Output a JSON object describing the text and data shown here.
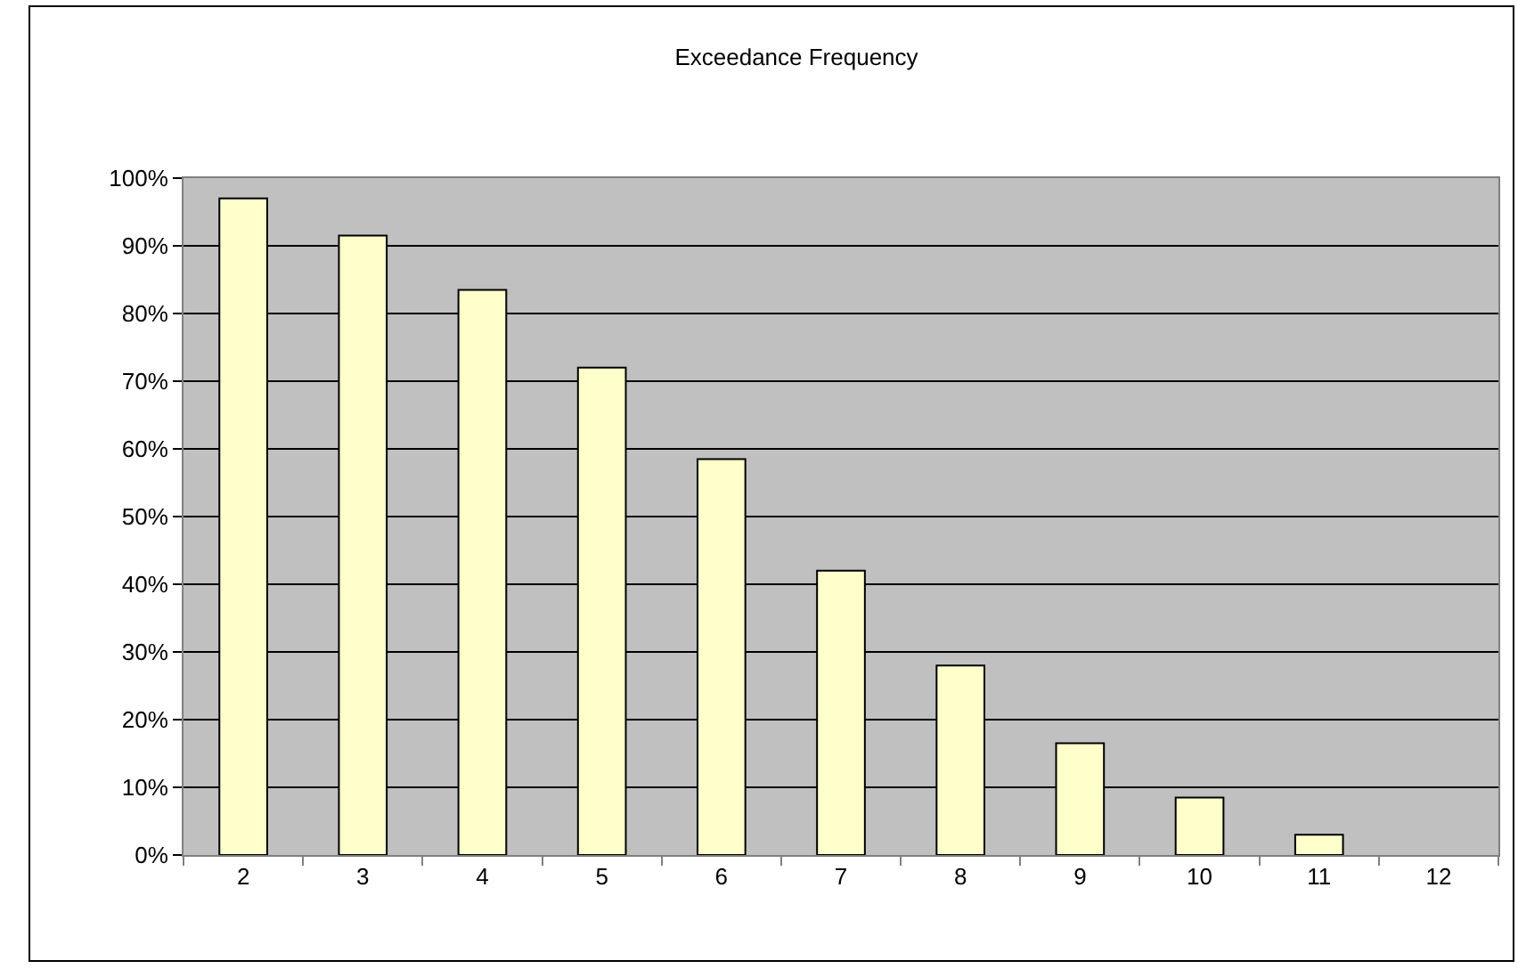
{
  "chart_data": {
    "type": "bar",
    "title": "Exceedance Frequency",
    "categories": [
      "2",
      "3",
      "4",
      "5",
      "6",
      "7",
      "8",
      "9",
      "10",
      "11",
      "12"
    ],
    "values": [
      97,
      91.5,
      83.5,
      72,
      58.5,
      42,
      28,
      16.5,
      8.5,
      3,
      0
    ],
    "color": "#ffffcc",
    "ylim": [
      0,
      100
    ],
    "yticks": [
      {
        "value": 0,
        "label": "0%"
      },
      {
        "value": 10,
        "label": "10%"
      },
      {
        "value": 20,
        "label": "20%"
      },
      {
        "value": 30,
        "label": "30%"
      },
      {
        "value": 40,
        "label": "40%"
      },
      {
        "value": 50,
        "label": "50%"
      },
      {
        "value": 60,
        "label": "60%"
      },
      {
        "value": 70,
        "label": "70%"
      },
      {
        "value": 80,
        "label": "80%"
      },
      {
        "value": 90,
        "label": "90%"
      },
      {
        "value": 100,
        "label": "100%"
      }
    ],
    "grid": "y"
  }
}
